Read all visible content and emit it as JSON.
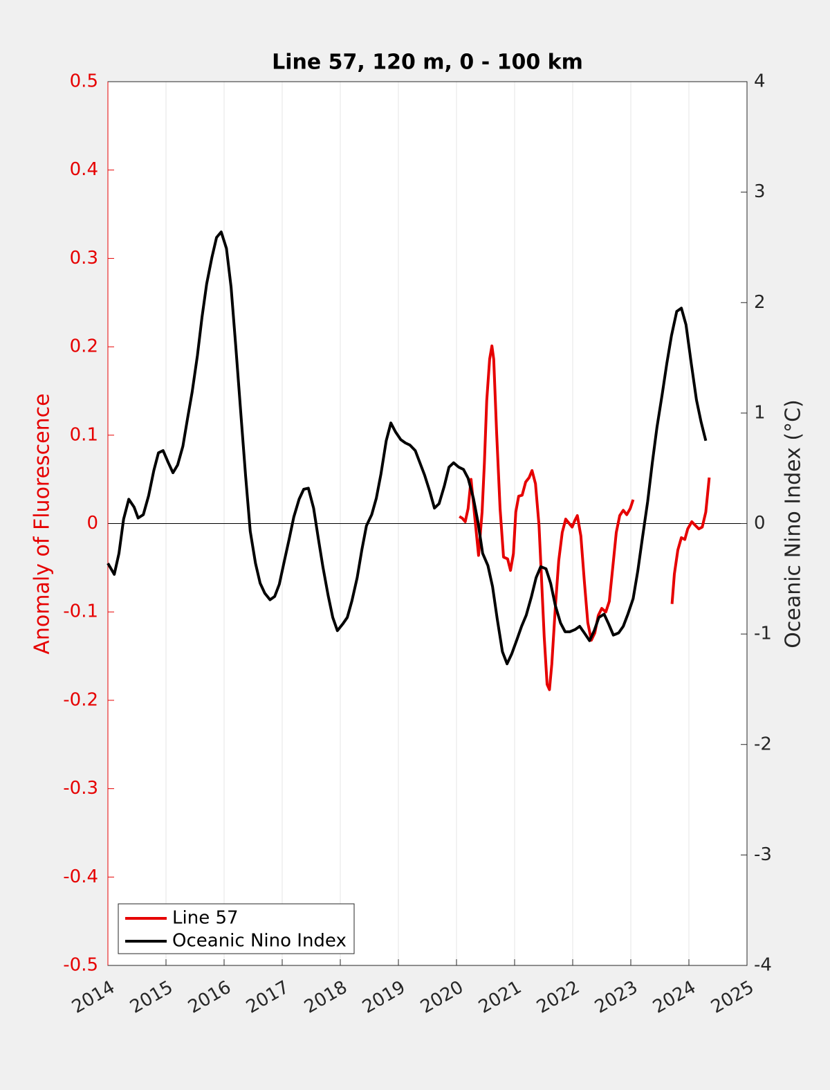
{
  "chart_data": {
    "type": "line",
    "title": "Line 57, 120 m, 0 - 100 km",
    "ylabel": "Anomaly of Fluorescence",
    "y2label": "Oceanic Nino Index (°C)",
    "xlim": [
      2014,
      2025
    ],
    "xticks": [
      2014,
      2015,
      2016,
      2017,
      2018,
      2019,
      2020,
      2021,
      2022,
      2023,
      2024,
      2025
    ],
    "ylim": [
      -0.5,
      0.5
    ],
    "yticks": [
      -0.5,
      -0.4,
      -0.3,
      -0.2,
      -0.1,
      0,
      0.1,
      0.2,
      0.3,
      0.4,
      0.5
    ],
    "y2lim": [
      -4,
      4
    ],
    "y2ticks": [
      -4,
      -3,
      -2,
      -1,
      0,
      1,
      2,
      3,
      4
    ],
    "grid": true,
    "legend": "lower left",
    "series": [
      {
        "name": "Line 57",
        "color": "#e60000",
        "x": [
          2020.05,
          2020.1,
          2020.15,
          2020.2,
          2020.25,
          2020.38,
          2020.44,
          2020.48,
          2020.52,
          2020.57,
          2020.61,
          2020.64,
          2020.69,
          2020.75,
          2020.81,
          2020.88,
          2020.93,
          2020.98,
          2021.02,
          2021.07,
          2021.13,
          2021.19,
          2021.25,
          2021.3,
          2021.36,
          2021.42,
          2021.46,
          2021.51,
          2021.56,
          2021.6,
          2021.64,
          2021.7,
          2021.76,
          2021.82,
          2021.88,
          2021.94,
          2021.99,
          2022.04,
          2022.08,
          2022.14,
          2022.2,
          2022.26,
          2022.32,
          2022.38,
          2022.44,
          2022.5,
          2022.57,
          2022.63,
          2022.69,
          2022.75,
          2022.81,
          2022.87,
          2022.93,
          2022.99,
          2023.04,
          null,
          2023.71,
          2023.75,
          2023.81,
          2023.87,
          2023.93,
          2023.98,
          2024.05,
          2024.11,
          2024.17,
          2024.23,
          2024.29,
          2024.35
        ],
        "values": [
          0.008,
          0.006,
          0.002,
          0.017,
          0.05,
          -0.036,
          0.013,
          0.068,
          0.139,
          0.186,
          0.201,
          0.186,
          0.103,
          0.017,
          -0.038,
          -0.04,
          -0.053,
          -0.034,
          0.013,
          0.031,
          0.032,
          0.047,
          0.052,
          0.06,
          0.045,
          -0.002,
          -0.057,
          -0.128,
          -0.182,
          -0.188,
          -0.159,
          -0.096,
          -0.042,
          -0.01,
          0.005,
          0,
          -0.004,
          0.004,
          0.009,
          -0.014,
          -0.065,
          -0.112,
          -0.132,
          -0.124,
          -0.104,
          -0.096,
          -0.1,
          -0.088,
          -0.049,
          -0.01,
          0.009,
          0.015,
          0.01,
          0.017,
          0.027,
          null,
          -0.091,
          -0.057,
          -0.03,
          -0.016,
          -0.018,
          -0.006,
          0.002,
          -0.002,
          -0.006,
          -0.004,
          0.013,
          0.052
        ]
      },
      {
        "name": "Oceanic Nino Index",
        "color": "#000000",
        "axis": "y2",
        "x": [
          2014.0,
          2014.11,
          2014.19,
          2014.27,
          2014.36,
          2014.45,
          2014.52,
          2014.61,
          2014.7,
          2014.79,
          2014.87,
          2014.95,
          2015.04,
          2015.12,
          2015.2,
          2015.29,
          2015.37,
          2015.45,
          2015.54,
          2015.62,
          2015.7,
          2015.79,
          2015.87,
          2015.95,
          2016.04,
          2016.12,
          2016.2,
          2016.29,
          2016.37,
          2016.45,
          2016.54,
          2016.62,
          2016.7,
          2016.79,
          2016.87,
          2016.95,
          2017.04,
          2017.12,
          2017.2,
          2017.29,
          2017.37,
          2017.45,
          2017.54,
          2017.62,
          2017.7,
          2017.79,
          2017.87,
          2017.95,
          2018.04,
          2018.12,
          2018.2,
          2018.29,
          2018.37,
          2018.45,
          2018.54,
          2018.62,
          2018.7,
          2018.79,
          2018.87,
          2018.95,
          2019.04,
          2019.12,
          2019.2,
          2019.29,
          2019.37,
          2019.45,
          2019.54,
          2019.62,
          2019.7,
          2019.79,
          2019.87,
          2019.95,
          2020.04,
          2020.12,
          2020.2,
          2020.29,
          2020.37,
          2020.45,
          2020.54,
          2020.62,
          2020.7,
          2020.79,
          2020.87,
          2020.95,
          2021.04,
          2021.12,
          2021.2,
          2021.29,
          2021.37,
          2021.45,
          2021.54,
          2021.62,
          2021.7,
          2021.79,
          2021.87,
          2021.95,
          2022.04,
          2022.12,
          2022.2,
          2022.29,
          2022.37,
          2022.45,
          2022.54,
          2022.62,
          2022.7,
          2022.79,
          2022.87,
          2022.95,
          2023.04,
          2023.12,
          2023.2,
          2023.29,
          2023.37,
          2023.45,
          2023.54,
          2023.62,
          2023.7,
          2023.79,
          2023.87,
          2023.95,
          2024.04,
          2024.13,
          2024.21,
          2024.29
        ],
        "values": [
          -0.36,
          -0.46,
          -0.27,
          0.04,
          0.22,
          0.15,
          0.05,
          0.08,
          0.25,
          0.48,
          0.64,
          0.66,
          0.55,
          0.46,
          0.53,
          0.7,
          0.95,
          1.19,
          1.52,
          1.87,
          2.17,
          2.41,
          2.59,
          2.64,
          2.49,
          2.14,
          1.61,
          0.98,
          0.43,
          -0.07,
          -0.36,
          -0.54,
          -0.63,
          -0.69,
          -0.66,
          -0.55,
          -0.33,
          -0.14,
          0.06,
          0.22,
          0.31,
          0.32,
          0.14,
          -0.13,
          -0.39,
          -0.65,
          -0.85,
          -0.97,
          -0.91,
          -0.85,
          -0.7,
          -0.49,
          -0.24,
          -0.02,
          0.08,
          0.23,
          0.45,
          0.75,
          0.91,
          0.83,
          0.76,
          0.73,
          0.71,
          0.66,
          0.55,
          0.44,
          0.29,
          0.14,
          0.18,
          0.34,
          0.51,
          0.55,
          0.51,
          0.49,
          0.41,
          0.23,
          0.01,
          -0.27,
          -0.38,
          -0.57,
          -0.86,
          -1.16,
          -1.27,
          -1.18,
          -1.05,
          -0.93,
          -0.83,
          -0.66,
          -0.49,
          -0.39,
          -0.41,
          -0.54,
          -0.74,
          -0.9,
          -0.98,
          -0.98,
          -0.96,
          -0.93,
          -0.99,
          -1.06,
          -0.97,
          -0.85,
          -0.82,
          -0.91,
          -1.01,
          -0.99,
          -0.93,
          -0.82,
          -0.68,
          -0.43,
          -0.13,
          0.2,
          0.55,
          0.87,
          1.17,
          1.45,
          1.7,
          1.92,
          1.95,
          1.8,
          1.45,
          1.12,
          0.92,
          0.75
        ]
      }
    ]
  }
}
